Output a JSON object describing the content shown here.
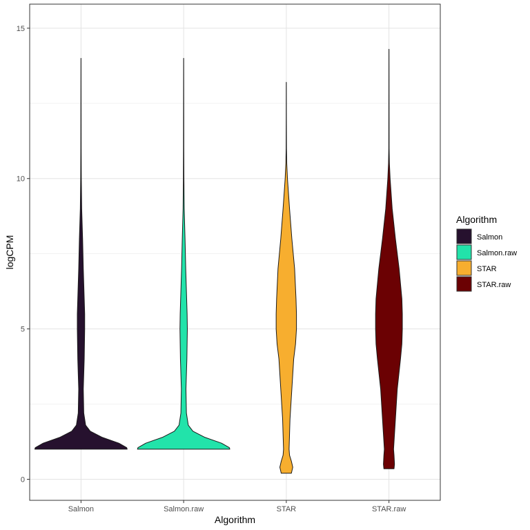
{
  "chart_data": {
    "type": "violin",
    "xlabel": "Algorithm",
    "ylabel": "logCPM",
    "ylim": [
      -0.7,
      15.8
    ],
    "y_ticks": [
      0,
      5,
      10,
      15
    ],
    "grid": true,
    "legend": {
      "title": "Algorithm",
      "position": "right"
    },
    "categories": [
      "Salmon",
      "Salmon.raw",
      "STAR",
      "STAR.raw"
    ],
    "series": [
      {
        "name": "Salmon",
        "color": "#26112e",
        "min": 1.0,
        "max": 14.0,
        "density": [
          [
            1.0,
            1.0
          ],
          [
            1.05,
            0.99
          ],
          [
            1.2,
            0.82
          ],
          [
            1.4,
            0.45
          ],
          [
            1.6,
            0.2
          ],
          [
            1.8,
            0.1
          ],
          [
            2.2,
            0.06
          ],
          [
            3.0,
            0.05
          ],
          [
            4.0,
            0.07
          ],
          [
            5.0,
            0.08
          ],
          [
            5.5,
            0.08
          ],
          [
            6.0,
            0.07
          ],
          [
            7.0,
            0.05
          ],
          [
            8.0,
            0.035
          ],
          [
            9.0,
            0.015
          ],
          [
            10.0,
            0.007
          ],
          [
            11.0,
            0.004
          ],
          [
            12.0,
            0.003
          ],
          [
            13.0,
            0.002
          ],
          [
            14.0,
            0.001
          ]
        ]
      },
      {
        "name": "Salmon.raw",
        "color": "#22e3aa",
        "min": 1.0,
        "max": 14.0,
        "density": [
          [
            1.0,
            1.0
          ],
          [
            1.05,
            0.99
          ],
          [
            1.2,
            0.82
          ],
          [
            1.4,
            0.45
          ],
          [
            1.6,
            0.2
          ],
          [
            1.8,
            0.1
          ],
          [
            2.2,
            0.06
          ],
          [
            3.0,
            0.05
          ],
          [
            4.0,
            0.07
          ],
          [
            5.0,
            0.08
          ],
          [
            5.5,
            0.075
          ],
          [
            6.0,
            0.065
          ],
          [
            7.0,
            0.045
          ],
          [
            8.0,
            0.03
          ],
          [
            9.0,
            0.012
          ],
          [
            10.0,
            0.006
          ],
          [
            11.0,
            0.004
          ],
          [
            12.0,
            0.003
          ],
          [
            13.0,
            0.002
          ],
          [
            14.0,
            0.001
          ]
        ]
      },
      {
        "name": "STAR",
        "color": "#f7ae2f",
        "min": 0.2,
        "max": 13.2,
        "density": [
          [
            0.2,
            0.11
          ],
          [
            0.4,
            0.14
          ],
          [
            0.6,
            0.11
          ],
          [
            0.8,
            0.07
          ],
          [
            1.0,
            0.06
          ],
          [
            2.0,
            0.08
          ],
          [
            3.0,
            0.12
          ],
          [
            4.0,
            0.16
          ],
          [
            4.5,
            0.2
          ],
          [
            5.0,
            0.22
          ],
          [
            5.5,
            0.22
          ],
          [
            6.0,
            0.21
          ],
          [
            7.0,
            0.18
          ],
          [
            8.0,
            0.12
          ],
          [
            9.0,
            0.07
          ],
          [
            10.0,
            0.025
          ],
          [
            10.5,
            0.01
          ],
          [
            11.0,
            0.004
          ],
          [
            12.0,
            0.002
          ],
          [
            13.2,
            0.001
          ]
        ]
      },
      {
        "name": "STAR.raw",
        "color": "#6b0103",
        "min": 0.35,
        "max": 14.3,
        "density": [
          [
            0.35,
            0.11
          ],
          [
            0.5,
            0.12
          ],
          [
            0.8,
            0.11
          ],
          [
            1.0,
            0.1
          ],
          [
            2.0,
            0.14
          ],
          [
            3.0,
            0.18
          ],
          [
            4.0,
            0.25
          ],
          [
            4.5,
            0.28
          ],
          [
            5.0,
            0.29
          ],
          [
            5.5,
            0.29
          ],
          [
            6.0,
            0.28
          ],
          [
            7.0,
            0.22
          ],
          [
            8.0,
            0.14
          ],
          [
            9.0,
            0.07
          ],
          [
            10.0,
            0.025
          ],
          [
            10.5,
            0.01
          ],
          [
            11.0,
            0.004
          ],
          [
            12.0,
            0.003
          ],
          [
            13.0,
            0.002
          ],
          [
            14.3,
            0.001
          ]
        ]
      }
    ]
  }
}
